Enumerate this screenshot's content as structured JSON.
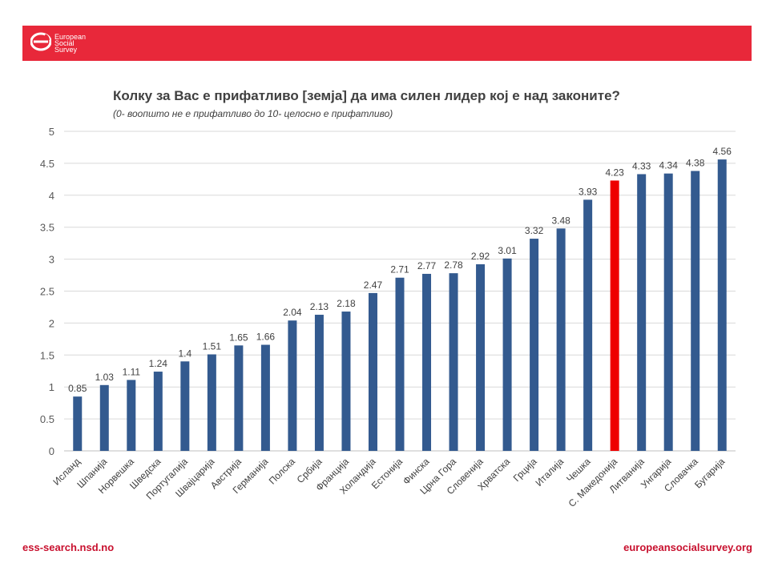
{
  "header": {
    "logo_line1": "European",
    "logo_line2": "Social",
    "logo_line3": "Survey",
    "brand_color": "#e8283a"
  },
  "footer": {
    "left_text": "ess-search.nsd.no",
    "right_text": "europeansocialsurvey.org"
  },
  "chart_data": {
    "type": "bar",
    "title": "Колку за Вас е прифатливо [земја] да има силен лидер кој е над законите?",
    "subtitle": "(0- воопшто не е прифатливо до 10- целосно е прифатливо)",
    "categories": [
      "Исланд",
      "Шпанија",
      "Норвешка",
      "Шведска",
      "Португалија",
      "Швајцарија",
      "Австрија",
      "Германија",
      "Полска",
      "Србија",
      "Франција",
      "Холандија",
      "Естонија",
      "Финска",
      "Црна Гора",
      "Словенија",
      "Хрватска",
      "Грција",
      "Италија",
      "Чешка",
      "С. Македонија",
      "Литванија",
      "Унгарија",
      "Словачка",
      "Бугарија"
    ],
    "values": [
      0.85,
      1.03,
      1.11,
      1.24,
      1.4,
      1.51,
      1.65,
      1.66,
      2.04,
      2.13,
      2.18,
      2.47,
      2.71,
      2.77,
      2.78,
      2.92,
      3.01,
      3.32,
      3.48,
      3.93,
      4.23,
      4.33,
      4.34,
      4.38,
      4.56
    ],
    "value_labels": [
      "0.85",
      "1.03",
      "1.11",
      "1.24",
      "1.4",
      "1.51",
      "1.65",
      "1.66",
      "2.04",
      "2.13",
      "2.18",
      "2.47",
      "2.71",
      "2.77",
      "2.78",
      "2.92",
      "3.01",
      "3.32",
      "3.48",
      "3.93",
      "4.23",
      "4.33",
      "4.34",
      "4.38",
      "4.56"
    ],
    "highlight_index": 20,
    "bar_color": "#335a8f",
    "highlight_color": "#ee0000",
    "ylim": [
      0,
      5
    ],
    "yticks": [
      "0",
      "0.5",
      "1",
      "1.5",
      "2",
      "2.5",
      "3",
      "3.5",
      "4",
      "4.5",
      "5"
    ],
    "grid": true,
    "legend": "none"
  }
}
